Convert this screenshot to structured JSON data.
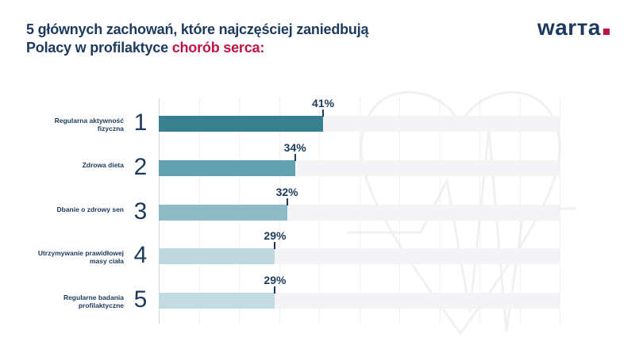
{
  "header": {
    "title_line1": "5 głównych zachowań, które najczęściej zaniedbują",
    "title_line2_prefix": "Polacy w profilaktyce ",
    "title_line2_highlight": "chorób serca:",
    "logo_text": "warта"
  },
  "colors": {
    "navy": "#1c3a5e",
    "accent_red": "#c01347",
    "track_gray": "#f4f3f5",
    "gridline": "#e2e3e7",
    "axis_line": "#cdd9df",
    "watermark": "#f2f0f1"
  },
  "chart_data": {
    "type": "bar",
    "orientation": "horizontal",
    "title": "5 głównych zachowań, które najczęściej zaniedbują Polacy w profilaktyce chorób serca:",
    "categories": [
      "Regularna aktywność fizyczna",
      "Zdrowa dieta",
      "Dbanie o zdrowy sen",
      "Utrzymywanie prawidłowej masy ciała",
      "Regularne badania profilaktyczne"
    ],
    "ranks": [
      "1",
      "2",
      "3",
      "4",
      "5"
    ],
    "values": [
      41,
      34,
      32,
      29,
      29
    ],
    "value_labels": [
      "41%",
      "34%",
      "32%",
      "29%",
      "29%"
    ],
    "bar_colors": [
      "#36808f",
      "#62a2b0",
      "#8ebbc5",
      "#bed8de",
      "#c2dbe0"
    ],
    "xlim": [
      0,
      100
    ],
    "gridline_step": 10,
    "grid": "vertical-dotted",
    "legend": "none"
  }
}
